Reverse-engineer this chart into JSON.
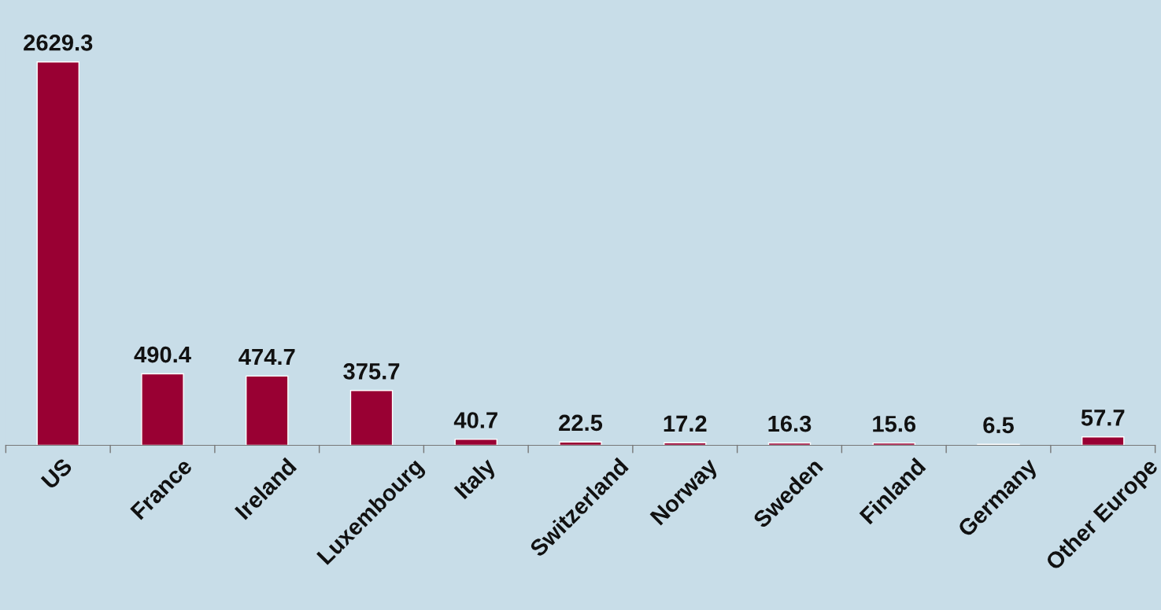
{
  "chart_data": {
    "type": "bar",
    "categories": [
      "US",
      "France",
      "Ireland",
      "Luxembourg",
      "Italy",
      "Switzerland",
      "Norway",
      "Sweden",
      "Finland",
      "Germany",
      "Other Europe"
    ],
    "values": [
      2629.3,
      490.4,
      474.7,
      375.7,
      40.7,
      22.5,
      17.2,
      16.3,
      15.6,
      6.5,
      57.7
    ],
    "color": "#990033",
    "log": false,
    "data_labels": true,
    "tick_labels": "x",
    "grid": false,
    "legend": false
  }
}
